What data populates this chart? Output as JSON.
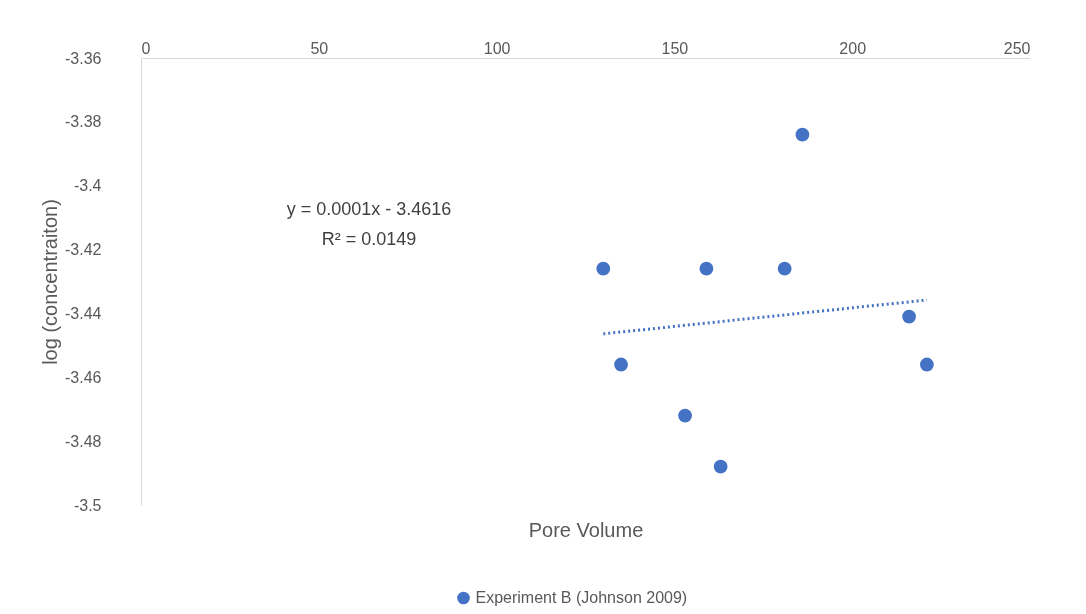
{
  "chart_data": {
    "type": "scatter",
    "xlabel": "Pore Volume",
    "ylabel": "log (concentraiton)",
    "xlim": [
      0,
      250
    ],
    "xticks": [
      0,
      50,
      100,
      150,
      200,
      250
    ],
    "ylim": [
      -3.5,
      -3.36
    ],
    "yticks": [
      -3.5,
      -3.48,
      -3.46,
      -3.44,
      -3.42,
      -3.4,
      -3.38,
      -3.36
    ],
    "grid": false,
    "legend": "bottom",
    "annotations": [
      "y = 0.0001x - 3.4616",
      "R² = 0.0149"
    ],
    "series": [
      {
        "name": "Experiment B (Johnson 2009)",
        "color": "#4472c4",
        "marker": "circle",
        "x": [
          130,
          135,
          153,
          159,
          163,
          181,
          186,
          216,
          221
        ],
        "values": [
          -3.426,
          -3.456,
          -3.472,
          -3.426,
          -3.488,
          -3.426,
          -3.384,
          -3.441,
          -3.456
        ]
      },
      {
        "type": "line",
        "line_style": "dotted",
        "marker": "none",
        "color": "#4472c4",
        "x": [
          130,
          221
        ],
        "values": [
          -3.4464,
          -3.4358
        ]
      }
    ]
  }
}
